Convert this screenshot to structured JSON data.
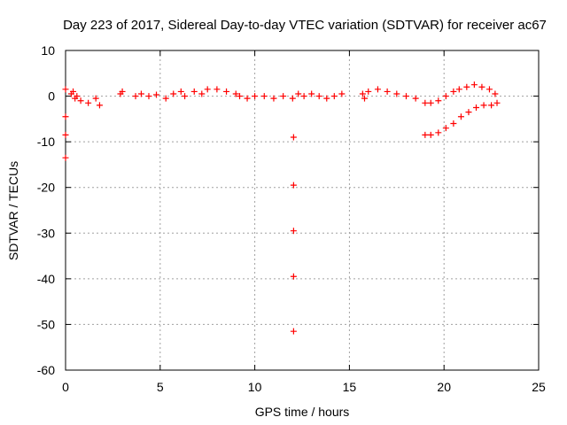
{
  "chart_data": {
    "type": "scatter",
    "title": "Day 223 of 2017, Sidereal Day-to-day VTEC variation (SDTVAR) for receiver ac67",
    "xlabel": "GPS time / hours",
    "ylabel": "SDTVAR / TECUs",
    "xlim": [
      0,
      25
    ],
    "ylim": [
      -60,
      10
    ],
    "xticks": [
      "0",
      "5",
      "10",
      "15",
      "20",
      "25"
    ],
    "yticks": [
      "10",
      "0",
      "-10",
      "-20",
      "-30",
      "-40",
      "-50",
      "-60"
    ],
    "grid": true,
    "marker": "+",
    "series": [
      {
        "name": "SDTVAR",
        "color": "#ff0000",
        "x": [
          0.0,
          0.0,
          0.0,
          0.0,
          0.3,
          0.4,
          0.5,
          0.6,
          0.8,
          1.2,
          1.6,
          1.8,
          2.9,
          3.0,
          3.7,
          4.0,
          4.4,
          4.8,
          5.3,
          5.7,
          6.1,
          6.3,
          6.8,
          7.2,
          7.5,
          8.0,
          8.5,
          9.0,
          9.2,
          9.6,
          10.0,
          10.5,
          11.0,
          11.5,
          12.0,
          12.05,
          12.05,
          12.05,
          12.05,
          12.05,
          12.3,
          12.6,
          13.0,
          13.4,
          13.8,
          14.2,
          14.6,
          15.7,
          15.8,
          16.0,
          16.5,
          17.0,
          17.5,
          18.0,
          18.5,
          19.0,
          19.3,
          19.7,
          20.1,
          20.5,
          20.8,
          21.2,
          21.6,
          22.0,
          22.4,
          22.7,
          19.0,
          19.3,
          19.7,
          20.1,
          20.5,
          20.9,
          21.3,
          21.7,
          22.1,
          22.5,
          22.8
        ],
        "y": [
          1.5,
          -4.5,
          -8.5,
          -13.5,
          0.5,
          1.0,
          -0.5,
          0.0,
          -1.0,
          -1.5,
          -0.5,
          -2.0,
          0.5,
          1.0,
          0.0,
          0.5,
          0.0,
          0.3,
          -0.5,
          0.5,
          1.0,
          0.0,
          1.0,
          0.5,
          1.5,
          1.5,
          1.0,
          0.5,
          0.0,
          -0.5,
          0.0,
          0.0,
          -0.5,
          0.0,
          -0.5,
          -9.0,
          -19.5,
          -29.5,
          -39.5,
          -51.5,
          0.5,
          0.0,
          0.5,
          0.0,
          -0.5,
          0.0,
          0.5,
          0.5,
          -0.5,
          1.0,
          1.5,
          1.0,
          0.5,
          0.0,
          -0.5,
          -1.5,
          -1.5,
          -1.0,
          0.0,
          1.0,
          1.5,
          2.0,
          2.5,
          2.0,
          1.5,
          0.5,
          -8.5,
          -8.5,
          -8.0,
          -7.0,
          -6.0,
          -4.5,
          -3.5,
          -2.5,
          -2.0,
          -2.0,
          -1.5
        ]
      }
    ]
  }
}
